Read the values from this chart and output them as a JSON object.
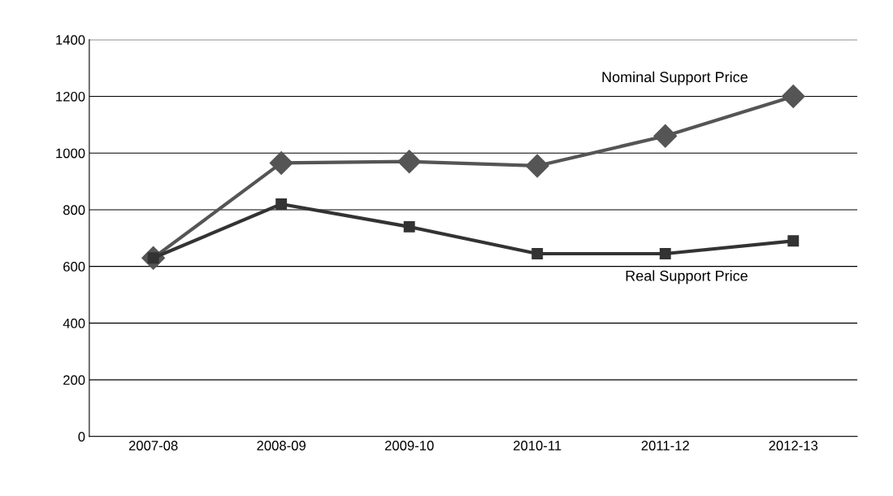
{
  "chart_data": {
    "type": "line",
    "categories": [
      "2007-08",
      "2008-09",
      "2009-10",
      "2010-11",
      "2011-12",
      "2012-13"
    ],
    "series": [
      {
        "name": "Nominal Support Price",
        "color": "#555555",
        "marker": "diamond",
        "values": [
          630,
          965,
          970,
          955,
          1060,
          1200
        ]
      },
      {
        "name": "Real Support Price",
        "color": "#333333",
        "marker": "square",
        "values": [
          630,
          820,
          740,
          645,
          645,
          690
        ]
      }
    ],
    "ylim": [
      0,
      1400
    ],
    "yticks": [
      0,
      200,
      400,
      600,
      800,
      1000,
      1200,
      1400
    ],
    "grid": "y",
    "legend": false
  }
}
